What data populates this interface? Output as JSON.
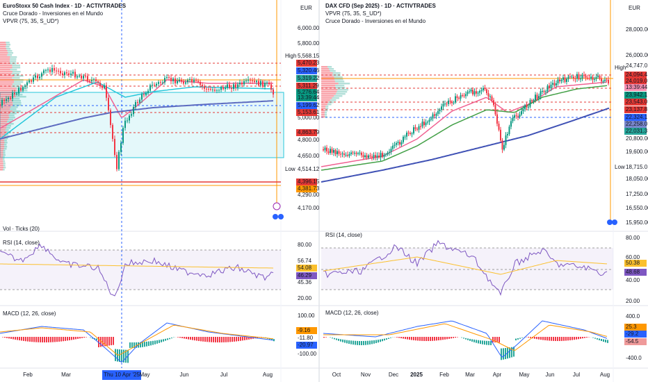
{
  "left": {
    "title": "EuroStoxx 50 Cash Index · 1D · ACTIVTRADES",
    "indicators": [
      "Cruce Dorado - Inversiones en el Mundo",
      "VPVR (75, 35, S_UD*)"
    ],
    "currency": "EUR",
    "price_axis": [
      "6,000.00",
      "5,800.00",
      "5,000.00",
      "4,800.00",
      "4,650.00",
      "4,290.00",
      "4,170.00"
    ],
    "high_label": "High",
    "high_value": "5,568.15",
    "low_label": "Low",
    "low_value": "4,514.12",
    "price_tags": [
      "5,470.23",
      "5,320.46",
      "5,319.22",
      "5,311.29",
      "5,276.64",
      "13:39:44",
      "5,199.62",
      "5,153.61",
      "4,863.79",
      "4,396.15",
      "4,381.73"
    ],
    "vol_label": "Vol · Ticks (20)",
    "rsi": {
      "label": "RSI (14, close)",
      "axis": [
        "80.00",
        "56.74",
        "45.36",
        "20.00"
      ],
      "tags": [
        "54.08",
        "46.29"
      ]
    },
    "macd": {
      "label": "MACD (12, 26, close)",
      "axis": [
        "100.00",
        "-11.80",
        "-100.00"
      ],
      "tags": [
        "-9.16",
        "-20.97"
      ]
    },
    "time_axis": [
      "Feb",
      "Mar",
      "Thu 10 Apr '25",
      "May",
      "Jun",
      "Jul",
      "Aug"
    ]
  },
  "right": {
    "title": "DAX CFD (Sep 2025) · 1D · ACTIVTRADES",
    "indicators": [
      "VPVR (75, 35, S_UD*)",
      "Cruce Dorado - Inversiones en el Mundo"
    ],
    "currency": "EUR",
    "price_axis": [
      "28,000.00",
      "26,000.00",
      "24,747.0",
      "20,800.00",
      "19,600.00",
      "18,050.00",
      "17,250.00",
      "16,550.00",
      "15,950.00"
    ],
    "high_label": "High",
    "low_label": "Low",
    "low_value": "18,715.0",
    "price_tags": [
      "24,094.4",
      "24,019.0",
      "13:39:44",
      "23,942.1",
      "23,543.0",
      "23,137.8",
      "22,324.1",
      "22,258.0",
      "22,031.3"
    ],
    "rsi": {
      "label": "RSI (14, close)",
      "axis": [
        "80.00",
        "60.00",
        "40.00",
        "20.00"
      ],
      "tags": [
        "50.38",
        "48.68"
      ]
    },
    "macd": {
      "label": "MACD (12, 26, close)",
      "axis": [
        "400.0",
        "-400.0"
      ],
      "tags": [
        "25.3",
        "-29.2",
        "-54.5"
      ]
    },
    "time_axis": [
      "Oct",
      "Nov",
      "Dec",
      "2025",
      "Feb",
      "Mar",
      "Apr",
      "May",
      "Jun",
      "Jul",
      "Aug"
    ]
  }
}
